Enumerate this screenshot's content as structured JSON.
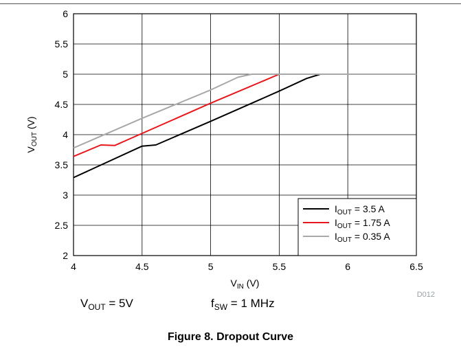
{
  "chart_data": {
    "type": "line",
    "xlabel": {
      "main": "V",
      "sub": "IN",
      "unit": " (V)"
    },
    "ylabel": {
      "main": "V",
      "sub": "OUT",
      "unit": " (V)"
    },
    "xlim": [
      4,
      6.5
    ],
    "ylim": [
      2,
      6
    ],
    "xticks": [
      "4",
      "4.5",
      "5",
      "5.5",
      "6",
      "6.5"
    ],
    "yticks": [
      "2",
      "2.5",
      "3",
      "3.5",
      "4",
      "4.5",
      "5",
      "5.5",
      "6"
    ],
    "grid": true,
    "legend_position": "bottom-right",
    "series": [
      {
        "name": "I_OUT = 3.5 A",
        "legend": {
          "main": "I",
          "sub": "OUT",
          "rest": " = 3.5 A"
        },
        "color": "#000000",
        "x": [
          4.0,
          4.5,
          4.6,
          5.0,
          5.5,
          5.7,
          5.8,
          6.5
        ],
        "y": [
          3.29,
          3.81,
          3.83,
          4.22,
          4.72,
          4.93,
          5.0,
          5.0
        ]
      },
      {
        "name": "I_OUT = 1.75 A",
        "legend": {
          "main": "I",
          "sub": "OUT",
          "rest": " = 1.75 A"
        },
        "color": "#e8161b",
        "x": [
          4.0,
          4.2,
          4.3,
          4.4,
          5.0,
          5.5,
          6.5
        ],
        "y": [
          3.64,
          3.83,
          3.82,
          3.92,
          4.52,
          5.0,
          5.0
        ]
      },
      {
        "name": "I_OUT = 0.35 A",
        "legend": {
          "main": "I",
          "sub": "OUT",
          "rest": " = 0.35 A"
        },
        "color": "#a8a8a8",
        "x": [
          4.0,
          4.5,
          5.0,
          5.2,
          5.3,
          6.5
        ],
        "y": [
          3.78,
          4.27,
          4.74,
          4.95,
          5.0,
          5.0
        ]
      }
    ]
  },
  "annotations": {
    "code": "D012",
    "vout": {
      "main": "V",
      "sub": "OUT",
      "rest": " = 5V"
    },
    "fsw": {
      "main": "f",
      "sub": "SW",
      "rest": " = 1 MHz"
    }
  },
  "caption": "Figure 8. Dropout Curve"
}
